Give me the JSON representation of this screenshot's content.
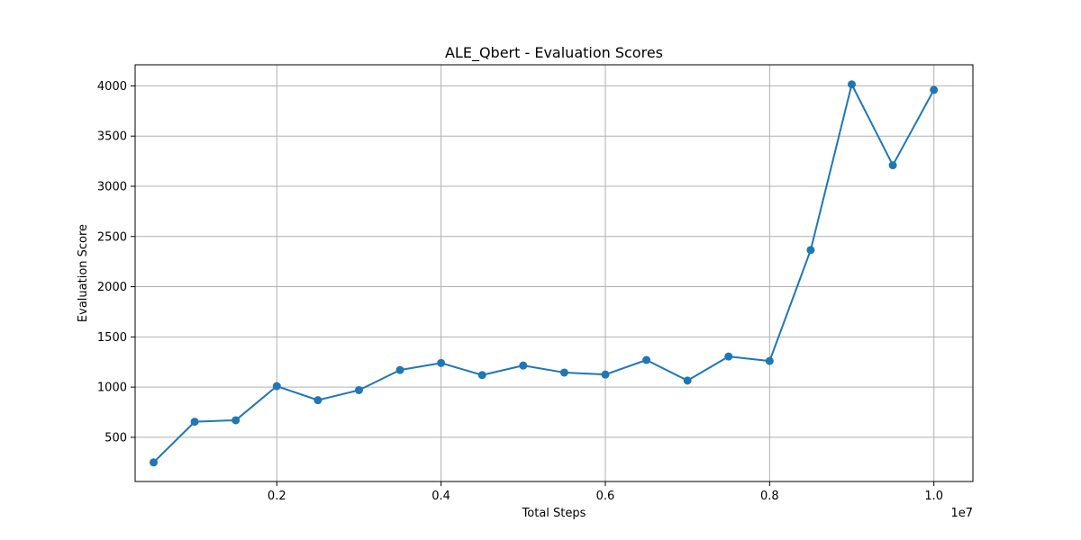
{
  "chart_data": {
    "type": "line",
    "title": "ALE_Qbert - Evaluation Scores",
    "xlabel": "Total Steps",
    "ylabel": "Evaluation Score",
    "x_offset_label": "1e7",
    "xlim": [
      0.0275,
      1.0475
    ],
    "ylim": [
      60,
      4210
    ],
    "x_ticks": [
      0.2,
      0.4,
      0.6,
      0.8,
      1.0
    ],
    "x_tick_labels": [
      "0.2",
      "0.4",
      "0.6",
      "0.8",
      "1.0"
    ],
    "y_ticks": [
      500,
      1000,
      1500,
      2000,
      2500,
      3000,
      3500,
      4000
    ],
    "y_tick_labels": [
      "500",
      "1000",
      "1500",
      "2000",
      "2500",
      "3000",
      "3500",
      "4000"
    ],
    "grid": true,
    "series": [
      {
        "color": "#1f77b4",
        "marker": "circle",
        "x": [
          0.05,
          0.1,
          0.15,
          0.2,
          0.25,
          0.3,
          0.35,
          0.4,
          0.45,
          0.5,
          0.55,
          0.6,
          0.65,
          0.7,
          0.75,
          0.8,
          0.85,
          0.9,
          0.95,
          1.0
        ],
        "y": [
          250,
          655,
          670,
          1010,
          870,
          970,
          1170,
          1240,
          1120,
          1215,
          1145,
          1125,
          1270,
          1065,
          1305,
          1260,
          2365,
          4015,
          3210,
          3960
        ]
      }
    ]
  }
}
